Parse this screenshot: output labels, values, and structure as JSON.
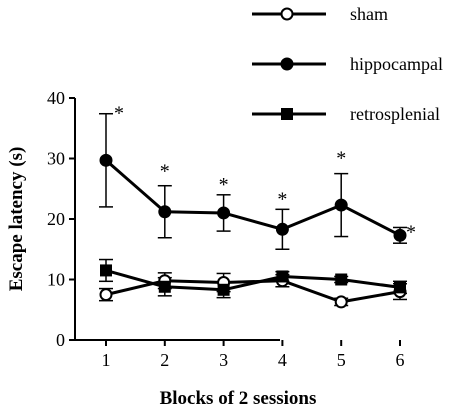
{
  "chart_data": {
    "type": "line",
    "title": "",
    "xlabel": "Blocks of 2 sessions",
    "ylabel": "Escape latency (s)",
    "x": [
      1,
      2,
      3,
      4,
      5,
      6
    ],
    "x_tick_labels": [
      "1",
      "2",
      "3",
      "4",
      "5",
      "6"
    ],
    "ylim": [
      0,
      40
    ],
    "y_ticks": [
      0,
      10,
      20,
      30,
      40
    ],
    "y_tick_labels": [
      "0",
      "10",
      "20",
      "30",
      "40"
    ],
    "grid": false,
    "legend_position": "top-right",
    "series": [
      {
        "name": "sham",
        "marker": "open-circle",
        "values": [
          7.5,
          9.8,
          9.5,
          9.8,
          6.3,
          8.0
        ],
        "errors": [
          1.0,
          1.3,
          1.5,
          1.0,
          0.6,
          1.3
        ]
      },
      {
        "name": "hippocampal",
        "marker": "filled-circle",
        "values": [
          29.7,
          21.2,
          21.0,
          18.3,
          22.3,
          17.3
        ],
        "errors": [
          7.7,
          4.3,
          3.0,
          3.3,
          5.2,
          1.3
        ]
      },
      {
        "name": "retrosplenial",
        "marker": "filled-square",
        "values": [
          11.5,
          8.8,
          8.3,
          10.5,
          10.0,
          8.7
        ],
        "errors": [
          1.8,
          1.5,
          1.3,
          0.8,
          0.5,
          1.0
        ]
      }
    ],
    "annotations": [
      {
        "x": 1,
        "text": "*"
      },
      {
        "x": 2,
        "text": "*"
      },
      {
        "x": 3,
        "text": "*"
      },
      {
        "x": 4,
        "text": "*"
      },
      {
        "x": 5,
        "text": "*"
      },
      {
        "x": 6,
        "text": "*"
      }
    ]
  }
}
